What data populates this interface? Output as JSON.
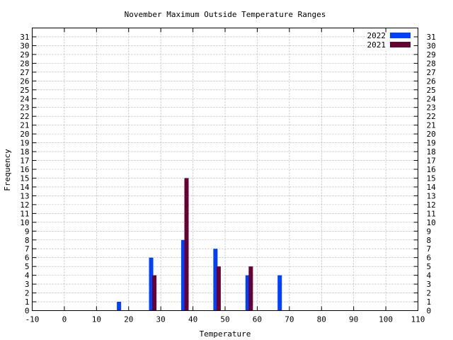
{
  "chart_data": {
    "type": "bar",
    "title": "November Maximum Outside Temperature Ranges",
    "xlabel": "Temperature",
    "ylabel": "Frequency",
    "xlim": [
      -10,
      110
    ],
    "ylim": [
      0,
      32
    ],
    "x_ticks": [
      -10,
      0,
      10,
      20,
      30,
      40,
      50,
      60,
      70,
      80,
      90,
      100,
      110
    ],
    "y_ticks": [
      0,
      1,
      2,
      3,
      4,
      5,
      6,
      7,
      8,
      9,
      10,
      11,
      12,
      13,
      14,
      15,
      16,
      17,
      18,
      19,
      20,
      21,
      22,
      23,
      24,
      25,
      26,
      27,
      28,
      29,
      30,
      31
    ],
    "grid": true,
    "legend_position": "top-right",
    "series": [
      {
        "name": "2022",
        "color": "#0040ff",
        "points": [
          {
            "x": 17,
            "y": 1
          },
          {
            "x": 27,
            "y": 6
          },
          {
            "x": 37,
            "y": 8
          },
          {
            "x": 47,
            "y": 7
          },
          {
            "x": 57,
            "y": 4
          },
          {
            "x": 67,
            "y": 4
          }
        ]
      },
      {
        "name": "2021",
        "color": "#660033",
        "points": [
          {
            "x": 28,
            "y": 4
          },
          {
            "x": 38,
            "y": 15
          },
          {
            "x": 48,
            "y": 5
          },
          {
            "x": 58,
            "y": 5
          }
        ]
      }
    ]
  }
}
